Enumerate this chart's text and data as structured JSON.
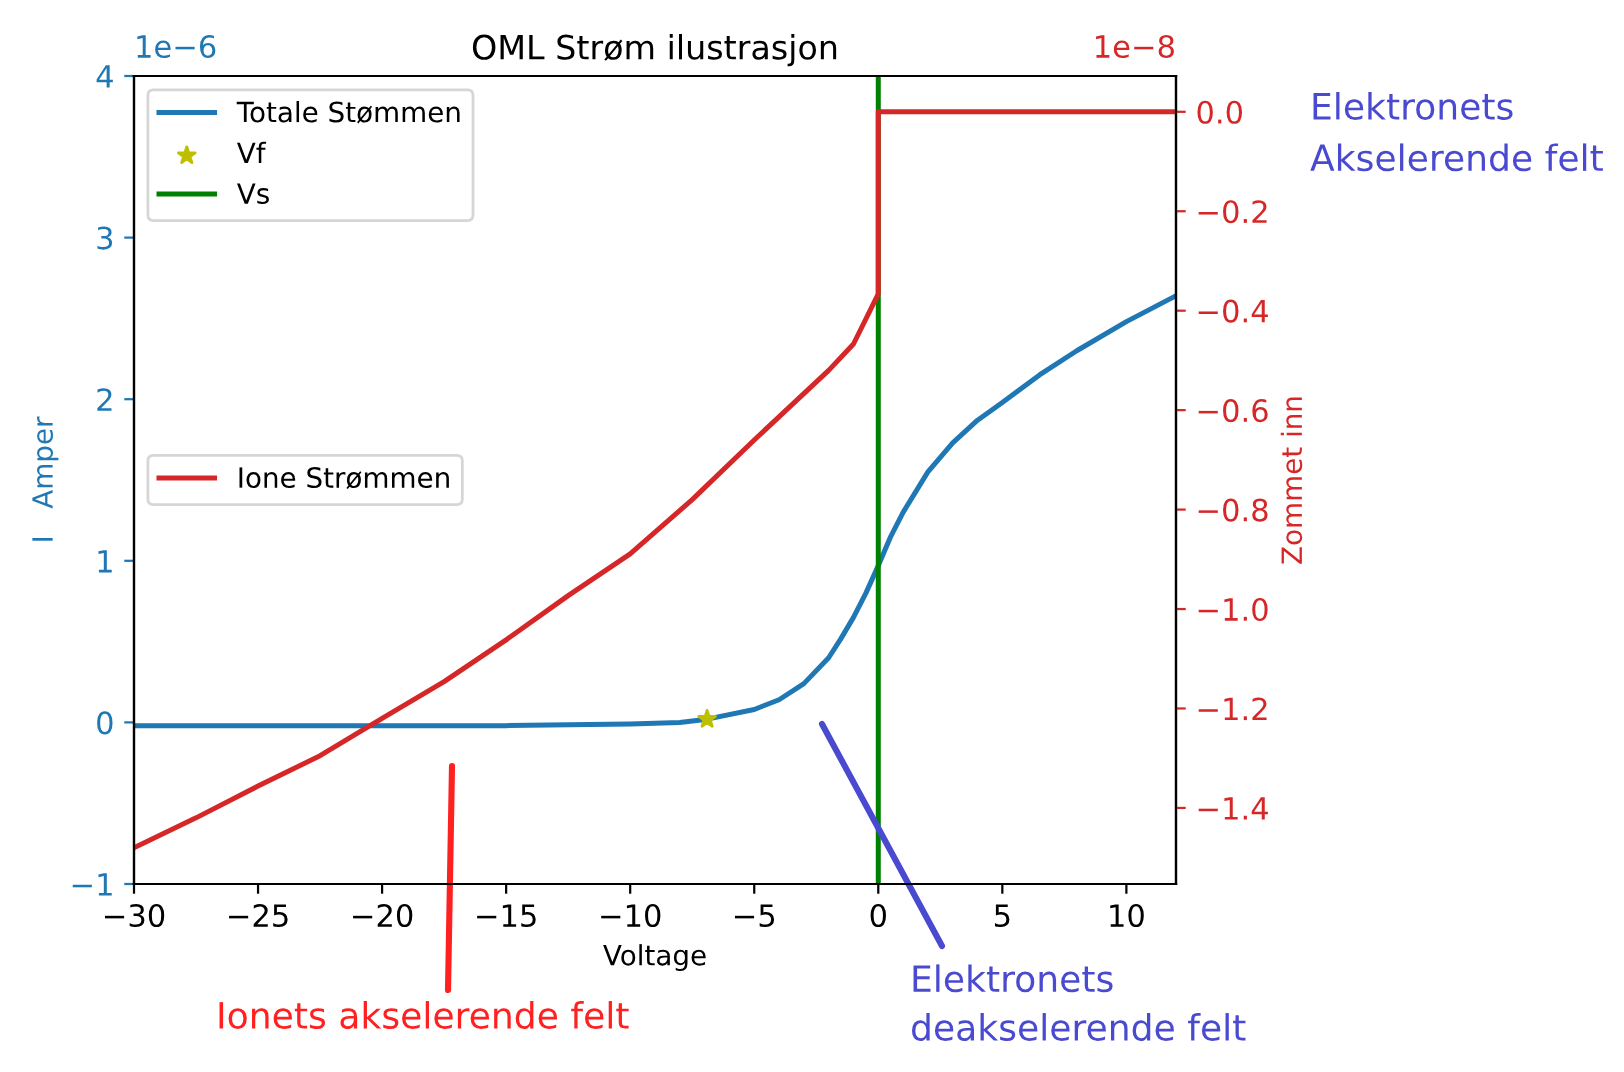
{
  "chart_data": {
    "type": "line",
    "title": "OML Strøm ilustrasjon",
    "xlabel": "Voltage",
    "ylabel": "I   Amper",
    "y2label": "Zommet inn",
    "xlim": [
      -30,
      12
    ],
    "xticks": [
      {
        "value": -30,
        "label": "−30"
      },
      {
        "value": -25,
        "label": "−25"
      },
      {
        "value": -20,
        "label": "−20"
      },
      {
        "value": -15,
        "label": "−15"
      },
      {
        "value": -10,
        "label": "−10"
      },
      {
        "value": -5,
        "label": "−5"
      },
      0,
      5,
      10
    ],
    "ylim": [
      -1,
      4
    ],
    "yticks": [
      {
        "value": -1,
        "label": "−1"
      },
      0,
      1,
      2,
      3,
      4
    ],
    "y2lim": [
      -1.553,
      0.072
    ],
    "y2ticks": [
      {
        "value": 0,
        "label": "0.0"
      },
      {
        "value": -0.2,
        "label": "−0.2"
      },
      {
        "value": -0.4,
        "label": "−0.4"
      },
      {
        "value": -0.6,
        "label": "−0.6"
      },
      {
        "value": -0.8,
        "label": "−0.8"
      },
      {
        "value": -1.0,
        "label": "−1.0"
      },
      {
        "value": -1.2,
        "label": "−1.2"
      },
      {
        "value": -1.4,
        "label": "−1.4"
      }
    ],
    "legend": "top left",
    "grid": false,
    "series": [
      {
        "name": "Totale Stømmen",
        "color": "#1f77b4",
        "x": [
          -30,
          -25,
          -20,
          -15,
          -10,
          -8,
          -6.9,
          -5,
          -4,
          -3,
          -2,
          -1.5,
          -1,
          -0.5,
          0,
          0.5,
          1,
          2,
          3,
          4,
          5,
          6.5,
          8,
          10,
          12
        ],
        "values": [
          -0.02,
          -0.02,
          -0.02,
          -0.02,
          -0.01,
          0.0,
          0.02,
          0.08,
          0.14,
          0.24,
          0.4,
          0.52,
          0.65,
          0.8,
          0.97,
          1.15,
          1.3,
          1.55,
          1.73,
          1.87,
          1.98,
          2.15,
          2.3,
          2.48,
          2.64
        ]
      },
      {
        "name": "Vf",
        "type": "scatter",
        "marker": "star",
        "color": "#bfbf00",
        "x": [
          -6.9
        ],
        "values": [
          0.02
        ]
      },
      {
        "name": "Vs",
        "color": "#008000",
        "x": [
          0,
          0
        ],
        "values": [
          -1,
          4
        ]
      },
      {
        "name": "Ione Strømmen",
        "axis": "y2",
        "color": "#d62728",
        "x": [
          -30,
          -27.5,
          -25,
          -22.5,
          -20,
          -17.5,
          -15,
          -12.5,
          -10,
          -7.5,
          -5,
          -2,
          -1,
          0,
          0,
          12
        ],
        "values": [
          -1.48,
          -1.42,
          -1.356,
          -1.295,
          -1.22,
          -1.146,
          -1.062,
          -0.973,
          -0.889,
          -0.78,
          -0.66,
          -0.52,
          -0.467,
          -0.366,
          0.0,
          0.0
        ]
      }
    ],
    "annotations": [
      "1e−6",
      "1e−8",
      "Elektronets\nAkselerende felt",
      "Ionets akselerende felt",
      "Elektronets\ndeakselerende felt"
    ]
  }
}
